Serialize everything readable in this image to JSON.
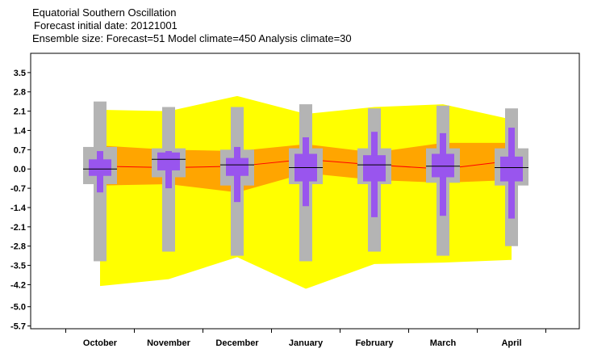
{
  "header": {
    "title": "Equatorial Southern Oscillation",
    "line2": "Forecast initial date: 20121001",
    "line3": "Ensemble size: Forecast=51 Model climate=450 Analysis climate=30"
  },
  "colors": {
    "climate_outer": "#ffff00",
    "climate_inner": "#ffa500",
    "forecast_outer": "#b4b4b4",
    "forecast_inner": "#9955ee",
    "median_line": "#ff0000",
    "median_tick": "#000000"
  },
  "chart_data": {
    "type": "box",
    "categories": [
      "October",
      "November",
      "December",
      "January",
      "February",
      "March",
      "April"
    ],
    "y_ticks": [
      "3.5",
      "2.8",
      "2.1",
      "1.4",
      "0.7",
      "0.0",
      "-0.7",
      "-1.4",
      "-2.1",
      "-2.8",
      "-3.5",
      "-4.2",
      "-5.0",
      "-5.7"
    ],
    "ylim": [
      -5.8,
      4.2
    ],
    "grid": false,
    "model_climate": {
      "max": [
        2.15,
        2.1,
        2.65,
        2.0,
        2.25,
        2.35,
        1.8
      ],
      "upper": [
        0.85,
        0.7,
        0.65,
        0.9,
        0.6,
        0.95,
        0.95
      ],
      "median": [
        0.1,
        0.05,
        0.1,
        0.35,
        0.15,
        0.0,
        0.3
      ],
      "lower": [
        -0.6,
        -0.55,
        -0.85,
        -0.15,
        -0.4,
        -0.5,
        -0.4
      ],
      "min": [
        -4.25,
        -4.0,
        -3.2,
        -4.35,
        -3.45,
        -3.4,
        -3.3
      ]
    },
    "forecast": {
      "max": [
        2.45,
        2.25,
        2.25,
        2.35,
        2.2,
        2.3,
        2.2
      ],
      "q75": [
        0.8,
        0.75,
        0.7,
        0.75,
        0.75,
        0.75,
        0.75
      ],
      "q67": [
        0.65,
        0.65,
        0.8,
        1.15,
        1.35,
        1.3,
        1.5
      ],
      "upper_mid": [
        0.35,
        0.6,
        0.4,
        0.55,
        0.5,
        0.55,
        0.45
      ],
      "median": [
        0.0,
        0.35,
        0.15,
        0.05,
        0.15,
        0.1,
        0.05
      ],
      "lower_mid": [
        -0.25,
        -0.05,
        -0.25,
        -0.45,
        -0.45,
        -0.3,
        -0.45
      ],
      "q33": [
        -0.85,
        -0.7,
        -1.2,
        -1.35,
        -1.75,
        -1.7,
        -1.8
      ],
      "q25": [
        -0.55,
        -0.3,
        -0.6,
        -0.55,
        -0.55,
        -0.5,
        -0.6
      ],
      "min": [
        -3.35,
        -3.0,
        -3.15,
        -3.35,
        -3.0,
        -3.15,
        -2.8
      ]
    }
  }
}
